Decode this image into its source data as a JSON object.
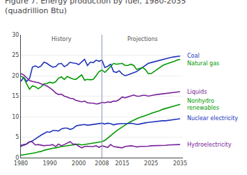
{
  "chart_data": {
    "type": "line",
    "title": "Figure 7. Energy production by fuel, 1980-2035",
    "subtitle": "(quadrillion Btu)",
    "x": [
      1980,
      1981,
      1982,
      1983,
      1984,
      1985,
      1986,
      1987,
      1988,
      1989,
      1990,
      1991,
      1992,
      1993,
      1994,
      1995,
      1996,
      1997,
      1998,
      1999,
      2000,
      2001,
      2002,
      2003,
      2004,
      2005,
      2006,
      2007,
      2008,
      2009,
      2010,
      2011,
      2012,
      2013,
      2014,
      2015,
      2016,
      2017,
      2018,
      2019,
      2020,
      2021,
      2022,
      2023,
      2024,
      2025,
      2026,
      2027,
      2028,
      2029,
      2030,
      2031,
      2032,
      2033,
      2034,
      2035
    ],
    "series": [
      {
        "name": "Coal",
        "color": "#2233bb",
        "values": [
          18.6,
          19.6,
          18.6,
          19.3,
          22.1,
          22.4,
          22.0,
          22.4,
          23.3,
          23.0,
          22.5,
          22.1,
          22.2,
          22.9,
          23.0,
          22.2,
          22.6,
          23.3,
          23.1,
          23.0,
          22.7,
          23.4,
          24.0,
          22.5,
          23.3,
          23.2,
          23.8,
          23.5,
          23.8,
          22.0,
          22.3,
          22.8,
          21.0,
          20.8,
          21.2,
          20.4,
          20.0,
          20.2,
          20.5,
          20.8,
          21.0,
          21.5,
          22.0,
          22.5,
          23.0,
          23.2,
          23.4,
          23.6,
          23.8,
          24.0,
          24.2,
          24.3,
          24.5,
          24.6,
          24.7,
          24.8
        ]
      },
      {
        "name": "Natural gas",
        "color": "#009900",
        "values": [
          19.9,
          19.5,
          18.0,
          16.7,
          17.5,
          17.3,
          16.8,
          17.3,
          18.0,
          18.1,
          18.4,
          18.2,
          18.5,
          19.4,
          19.7,
          19.1,
          19.8,
          19.5,
          19.2,
          19.1,
          19.7,
          20.2,
          18.9,
          19.1,
          19.0,
          19.1,
          20.0,
          21.0,
          21.4,
          20.8,
          21.5,
          22.2,
          23.0,
          22.8,
          22.9,
          23.0,
          22.5,
          22.5,
          22.8,
          22.5,
          21.5,
          21.8,
          22.0,
          21.5,
          20.5,
          20.5,
          21.0,
          21.5,
          22.0,
          22.5,
          22.8,
          23.0,
          23.2,
          23.5,
          23.8,
          24.0
        ]
      },
      {
        "name": "Liquids",
        "color": "#772299",
        "values": [
          20.5,
          20.2,
          19.5,
          18.8,
          18.6,
          18.5,
          18.3,
          18.0,
          17.8,
          17.5,
          17.0,
          16.5,
          15.8,
          15.4,
          15.5,
          15.0,
          14.8,
          14.5,
          14.4,
          14.0,
          13.8,
          13.6,
          13.8,
          13.4,
          13.3,
          13.3,
          13.1,
          13.2,
          13.5,
          13.4,
          13.6,
          13.5,
          13.8,
          13.8,
          14.2,
          14.8,
          14.6,
          14.8,
          15.0,
          15.3,
          15.0,
          15.0,
          15.2,
          15.2,
          15.0,
          15.2,
          15.3,
          15.4,
          15.5,
          15.6,
          15.7,
          15.8,
          15.9,
          16.0,
          16.0,
          16.1
        ]
      },
      {
        "name": "Nonhydro\nrenewables",
        "color": "#009900",
        "values": [
          0.6,
          0.7,
          0.8,
          0.9,
          1.0,
          1.2,
          1.4,
          1.5,
          1.8,
          2.0,
          2.2,
          2.3,
          2.4,
          2.6,
          2.7,
          2.8,
          2.9,
          3.0,
          3.1,
          3.2,
          3.3,
          3.1,
          3.2,
          3.3,
          3.4,
          3.6,
          3.7,
          3.7,
          3.9,
          4.2,
          4.8,
          5.4,
          6.0,
          6.5,
          7.0,
          7.5,
          8.0,
          8.4,
          8.8,
          9.2,
          9.5,
          9.8,
          10.0,
          10.3,
          10.5,
          10.8,
          11.0,
          11.2,
          11.5,
          11.8,
          12.0,
          12.2,
          12.4,
          12.6,
          12.8,
          13.0
        ]
      },
      {
        "name": "Nuclear electricity",
        "color": "#2233bb",
        "values": [
          2.7,
          3.2,
          3.3,
          3.8,
          4.1,
          4.6,
          5.1,
          5.5,
          5.9,
          6.3,
          6.2,
          6.6,
          6.6,
          6.5,
          7.0,
          7.2,
          7.2,
          6.9,
          7.1,
          7.7,
          7.9,
          8.0,
          8.1,
          7.9,
          8.0,
          8.2,
          8.2,
          8.4,
          8.4,
          8.2,
          8.4,
          8.3,
          8.0,
          8.2,
          8.3,
          8.3,
          8.3,
          8.4,
          8.4,
          8.3,
          8.1,
          8.2,
          8.4,
          8.5,
          8.6,
          8.7,
          8.7,
          8.8,
          8.9,
          9.0,
          9.0,
          9.1,
          9.2,
          9.3,
          9.4,
          9.5
        ]
      },
      {
        "name": "Hydroelectricity",
        "color": "#772299",
        "values": [
          3.1,
          3.0,
          3.4,
          3.9,
          3.8,
          3.1,
          3.2,
          3.0,
          2.9,
          3.0,
          3.0,
          3.2,
          2.7,
          3.3,
          2.9,
          3.2,
          3.6,
          3.9,
          3.3,
          3.3,
          2.8,
          2.4,
          2.7,
          2.8,
          2.7,
          2.7,
          2.9,
          2.5,
          2.9,
          2.7,
          2.5,
          3.2,
          2.7,
          2.6,
          2.5,
          2.4,
          2.7,
          2.8,
          2.9,
          2.8,
          2.6,
          2.7,
          2.7,
          2.8,
          2.8,
          2.9,
          2.9,
          3.0,
          3.0,
          3.0,
          3.0,
          3.1,
          3.1,
          3.1,
          3.2,
          3.2
        ]
      }
    ],
    "vline": 2008,
    "annotations": [
      "History",
      "Projections"
    ],
    "xlim": [
      1980,
      2036
    ],
    "ylim": [
      0,
      30
    ],
    "xticks": [
      1980,
      1990,
      2000,
      2008,
      2015,
      2025,
      2035
    ],
    "yticks": [
      0,
      5,
      10,
      15,
      20,
      25,
      30
    ],
    "grid": true
  }
}
